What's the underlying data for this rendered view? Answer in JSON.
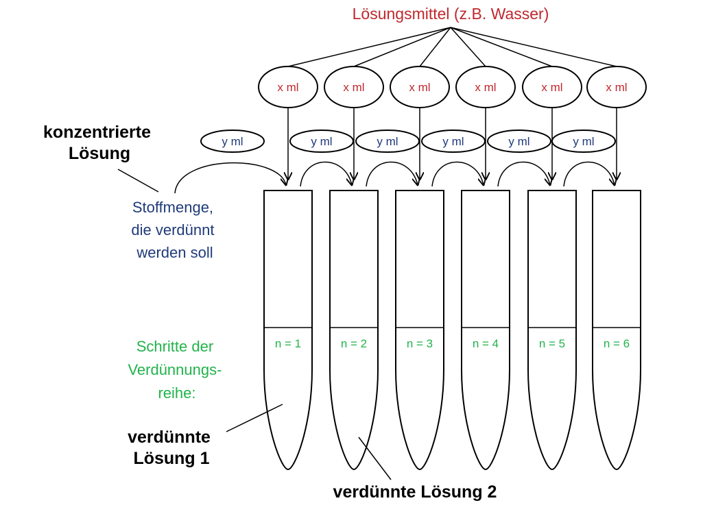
{
  "solvent_label": "Lösungsmittel (z.B. Wasser)",
  "solvent_portion_label": "x ml",
  "transfer_label": "y ml",
  "concentrated_label": [
    "konzentrierte",
    "Lösung"
  ],
  "substance_label": [
    "Stoffmenge,",
    "die verdünnt",
    "werden soll"
  ],
  "steps_label": [
    "Schritte der",
    "Verdünnungs-",
    "reihe:"
  ],
  "diluted_1_label": [
    "verdünnte",
    "Lösung 1"
  ],
  "diluted_2_label": "verdünnte Lösung 2",
  "tubes": [
    {
      "step": "n = 1"
    },
    {
      "step": "n = 2"
    },
    {
      "step": "n = 3"
    },
    {
      "step": "n = 4"
    },
    {
      "step": "n = 5"
    },
    {
      "step": "n = 6"
    }
  ],
  "colors": {
    "solvent": "#c0282d",
    "transfer": "#1f3a7a",
    "steps": "#21b34b",
    "outline": "#000000"
  }
}
